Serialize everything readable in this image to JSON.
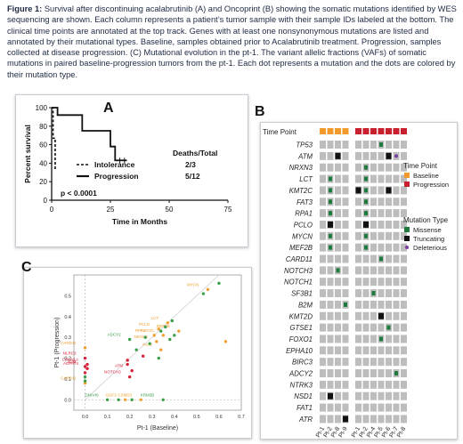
{
  "caption": {
    "fig_label": "Figure 1:",
    "text": " Survival after discontinuing acalabrutinib (A) and Oncoprint (B) showing the somatic mutations identified by WES sequencing are shown. Each column represents a patient’s tumor sample with their sample IDs labeled at the bottom. The clinical time points are annotated at the top track. Genes with at least one nonsynonymous mutations are listed and annotated by their mutational types. Baseline, samples obtained prior to Acalabrutinib treatment. Progression, samples collected at disease progression. (C) Mutational evolution in the pt-1. The variant allelic fractions (VAFs) of somatic mutations in paired baseline-progression tumors from the pt-1. Each dot represents a mutation and the dots are colored by their mutation type."
  },
  "panel_labels": {
    "a": "A",
    "b": "B",
    "c": "C"
  },
  "colors": {
    "baseline": "#f29b2c",
    "progression": "#c8202e",
    "missense": "#1f7a3e",
    "truncating": "#111111",
    "deleterious": "#7a3fa0",
    "wildtype": "#bdbdbd",
    "scatter_red": "#d6213a",
    "scatter_orange": "#f0a030",
    "scatter_green": "#3aa04a"
  },
  "chart_data": [
    {
      "type": "line",
      "panel": "A",
      "xlabel": "Time in Months",
      "ylabel": "Percent survival",
      "xlim": [
        0,
        75
      ],
      "ylim": [
        0,
        100
      ],
      "x_ticks": [
        "0",
        "25",
        "50",
        "75"
      ],
      "y_ticks": [
        "0",
        "20",
        "40",
        "60",
        "80",
        "100"
      ],
      "legend_header": "Deaths/Total",
      "pvalue": "p < 0.0001",
      "series": [
        {
          "name": "Intolerance",
          "deaths_total": "2/3",
          "style": "dashed",
          "x": [
            0,
            0.6,
            0.6,
            1.5,
            1.5
          ],
          "y": [
            100,
            100,
            67,
            67,
            33
          ]
        },
        {
          "name": "Progression",
          "deaths_total": "5/12",
          "style": "solid",
          "x": [
            0,
            2.5,
            2.5,
            13,
            13,
            19,
            19,
            25,
            25,
            27,
            27,
            32
          ],
          "y": [
            100,
            100,
            92,
            92,
            75,
            75,
            75,
            75,
            58,
            58,
            43,
            43
          ]
        }
      ]
    },
    {
      "type": "heatmap",
      "panel": "B",
      "time_point_label": "Time Point",
      "genes": [
        "TP53",
        "ATM",
        "NRXN3",
        "LCT",
        "KMT2C",
        "FAT3",
        "RPA1",
        "PCLO",
        "MYCN",
        "MEF2B",
        "CARD11",
        "NOTCH3",
        "NOTCH1",
        "SF3B1",
        "B2M",
        "KMT2D",
        "GTSE1",
        "FOXO1",
        "EPHA10",
        "BIRC3",
        "ADCY2",
        "NTRK3",
        "NSD1",
        "FAT1",
        "ATR"
      ],
      "samples": [
        "Pt-1",
        "Pt-2",
        "Pt-8",
        "Pt-9",
        "Pt-1",
        "Pt-2",
        "Pt-4",
        "Pt-5",
        "Pt-6",
        "Pt-7",
        "Pt-8"
      ],
      "time_points": [
        "B",
        "B",
        "B",
        "B",
        "P",
        "P",
        "P",
        "P",
        "P",
        "P",
        "P"
      ],
      "cells": [
        "0100010M000",
        "01T10000TD0",
        "01000M00000",
        "0M000M00000",
        "0M00TM00T00",
        "0M000M00000",
        "0M000M00000",
        "0T000T00000",
        "0M000M00000",
        "0M000M00000",
        "0000000M000",
        "00M00000000",
        "00000000000",
        "000000M0000",
        "000M0000000",
        "0000000T000",
        "00000000M00",
        "0000000M000",
        "00000000000",
        "00000000000",
        "000000000M0",
        "00000000000",
        "0T000000000",
        "00000000000",
        "000T0000000"
      ],
      "legend": {
        "time_point_title": "Time Point",
        "baseline": "Baseline",
        "progression": "Progression",
        "mutation_title": "Mutation Type",
        "missense": "Missense",
        "truncating": "Truncating",
        "deleterious": "Deleterious"
      }
    },
    {
      "type": "scatter",
      "panel": "C",
      "xlabel": "Pt-1 (Baseline)",
      "ylabel": "Pt-1 (Progression)",
      "xlim": [
        -0.05,
        0.7
      ],
      "ylim": [
        -0.05,
        0.6
      ],
      "x_ticks": [
        "0.0",
        "0.1",
        "0.2",
        "0.3",
        "0.4",
        "0.5",
        "0.6",
        "0.7"
      ],
      "y_ticks": [
        "0.0",
        "0.1",
        "0.2",
        "0.3",
        "0.4",
        "0.5"
      ],
      "points": [
        {
          "label": "MYCN",
          "x": 0.55,
          "y": 0.53,
          "color": "orange"
        },
        {
          "label": "",
          "x": 0.53,
          "y": 0.51,
          "color": "green"
        },
        {
          "label": "",
          "x": 0.6,
          "y": 0.56,
          "color": "green"
        },
        {
          "label": "",
          "x": 0.63,
          "y": 0.28,
          "color": "orange"
        },
        {
          "label": "LCT",
          "x": 0.37,
          "y": 0.37,
          "color": "orange"
        },
        {
          "label": "PCLO",
          "x": 0.33,
          "y": 0.34,
          "color": "orange"
        },
        {
          "label": "MEF2B",
          "x": 0.42,
          "y": 0.33,
          "color": "orange"
        },
        {
          "label": "RPA1",
          "x": 0.31,
          "y": 0.31,
          "color": "orange"
        },
        {
          "label": "KMT2C",
          "x": 0.35,
          "y": 0.31,
          "color": "orange"
        },
        {
          "label": "NRXN3",
          "x": 0.32,
          "y": 0.28,
          "color": "orange"
        },
        {
          "label": "FAT3",
          "x": 0.34,
          "y": 0.24,
          "color": "orange"
        },
        {
          "label": "ADCY2",
          "x": 0.2,
          "y": 0.29,
          "color": "green"
        },
        {
          "label": "",
          "x": 0.36,
          "y": 0.35,
          "color": "green"
        },
        {
          "label": "",
          "x": 0.38,
          "y": 0.29,
          "color": "green"
        },
        {
          "label": "",
          "x": 0.29,
          "y": 0.27,
          "color": "green"
        },
        {
          "label": "",
          "x": 0.27,
          "y": 0.3,
          "color": "green"
        },
        {
          "label": "",
          "x": 0.4,
          "y": 0.31,
          "color": "green"
        },
        {
          "label": "",
          "x": 0.34,
          "y": 0.33,
          "color": "green"
        },
        {
          "label": "",
          "x": 0.23,
          "y": 0.24,
          "color": "green"
        },
        {
          "label": "",
          "x": 0.33,
          "y": 0.2,
          "color": "green"
        },
        {
          "label": "",
          "x": 0.39,
          "y": 0.38,
          "color": "green"
        },
        {
          "label": "ATM",
          "x": 0.21,
          "y": 0.14,
          "color": "red"
        },
        {
          "label": "NOTCH3",
          "x": 0.2,
          "y": 0.11,
          "color": "red"
        },
        {
          "label": "",
          "x": 0.19,
          "y": 0.19,
          "color": "red"
        },
        {
          "label": "",
          "x": 0.19,
          "y": 0.17,
          "color": "red"
        },
        {
          "label": "",
          "x": 0.26,
          "y": 0.21,
          "color": "red"
        },
        {
          "label": "CARD11",
          "x": 0.0,
          "y": 0.25,
          "color": "orange"
        },
        {
          "label": "NLRC3",
          "x": 0.0,
          "y": 0.2,
          "color": "red"
        },
        {
          "label": "CDKN1A",
          "x": 0.01,
          "y": 0.17,
          "color": "red"
        },
        {
          "label": "B2M",
          "x": 0.0,
          "y": 0.16,
          "color": "red"
        },
        {
          "label": "AGPAT4",
          "x": 0.01,
          "y": 0.15,
          "color": "red"
        },
        {
          "label": "CARD11",
          "x": 0.0,
          "y": 0.08,
          "color": "orange"
        },
        {
          "label": "",
          "x": 0.0,
          "y": 0.13,
          "color": "red"
        },
        {
          "label": "",
          "x": 0.0,
          "y": 0.11,
          "color": "green"
        },
        {
          "label": "",
          "x": 0.0,
          "y": 0.09,
          "color": "green"
        },
        {
          "label": "DNAH6",
          "x": 0.1,
          "y": 0.0,
          "color": "green"
        },
        {
          "label": "GDF3",
          "x": 0.18,
          "y": 0.0,
          "color": "orange"
        },
        {
          "label": "CSMD3",
          "x": 0.25,
          "y": 0.0,
          "color": "orange"
        },
        {
          "label": "KRM3B",
          "x": 0.35,
          "y": 0.0,
          "color": "green"
        },
        {
          "label": "",
          "x": 0.15,
          "y": 0.0,
          "color": "green"
        },
        {
          "label": "",
          "x": 0.21,
          "y": 0.0,
          "color": "green"
        }
      ]
    }
  ]
}
